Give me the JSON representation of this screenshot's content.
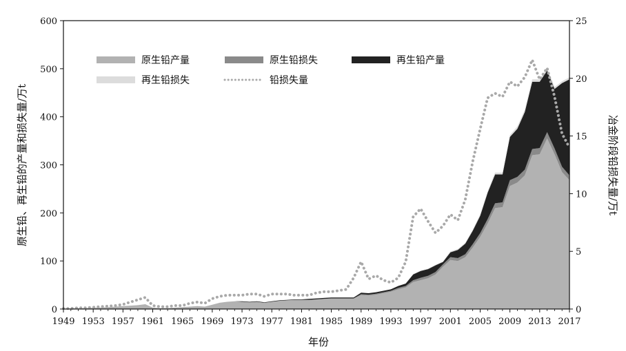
{
  "chart_data": {
    "type": "area",
    "xlabel": "年份",
    "ylabel_left": "原生铅、再生铅的产量和损失量/万t",
    "ylabel_right": "冶金阶段铅损失量/万t",
    "x_ticks": [
      "1949",
      "1953",
      "1957",
      "1961",
      "1965",
      "1969",
      "1973",
      "1977",
      "1981",
      "1985",
      "1989",
      "1993",
      "1997",
      "2001",
      "2005",
      "2009",
      "2013",
      "2017"
    ],
    "y_left_ticks": [
      "0",
      "100",
      "200",
      "300",
      "400",
      "500",
      "600"
    ],
    "y_right_ticks": [
      "0",
      "5",
      "10",
      "15",
      "20",
      "25"
    ],
    "ylim_left": [
      0,
      600
    ],
    "ylim_right": [
      0,
      25
    ],
    "xlim": [
      1949,
      2017
    ],
    "legend": {
      "placement": "top-left"
    },
    "colors": {
      "原生铅产量": "#b2b2b2",
      "原生铅损失": "#8a8a8a",
      "再生铅产量": "#222222",
      "再生铅损失": "#dcdcdc",
      "铅损失量": "#a9a9a9"
    },
    "years": [
      1949,
      1950,
      1951,
      1952,
      1953,
      1954,
      1955,
      1956,
      1957,
      1958,
      1959,
      1960,
      1961,
      1962,
      1963,
      1964,
      1965,
      1966,
      1967,
      1968,
      1969,
      1970,
      1971,
      1972,
      1973,
      1974,
      1975,
      1976,
      1977,
      1978,
      1979,
      1980,
      1981,
      1982,
      1983,
      1984,
      1985,
      1986,
      1987,
      1988,
      1989,
      1990,
      1991,
      1992,
      1993,
      1994,
      1995,
      1996,
      1997,
      1998,
      1999,
      2000,
      2001,
      2002,
      2003,
      2004,
      2005,
      2006,
      2007,
      2008,
      2009,
      2010,
      2011,
      2012,
      2013,
      2014,
      2015,
      2016,
      2017
    ],
    "series": [
      {
        "name": "原生铅产量",
        "axis": "left",
        "render": "stack",
        "values": [
          0.5,
          1,
          1.5,
          2,
          2.5,
          3,
          4,
          5,
          6,
          7,
          8,
          10,
          3,
          2,
          2,
          3,
          4,
          5,
          6,
          5,
          9,
          13,
          15,
          16,
          15,
          14,
          15,
          13,
          15,
          17,
          18,
          19,
          19,
          19,
          20,
          21,
          22,
          22,
          22,
          22,
          29,
          28,
          30,
          33,
          36,
          41,
          45,
          56,
          60,
          64,
          72,
          88,
          102,
          100,
          108,
          128,
          150,
          178,
          210,
          212,
          256,
          263,
          278,
          320,
          322,
          355,
          322,
          285,
          268
        ]
      },
      {
        "name": "原生铅损失",
        "axis": "left",
        "render": "stack",
        "values": [
          0,
          0,
          0,
          0,
          0,
          0,
          0,
          0,
          0,
          0,
          0,
          0,
          0,
          0,
          0,
          0,
          0,
          0,
          0,
          0,
          0,
          0,
          0,
          0,
          0,
          0,
          0,
          0,
          0,
          0,
          0,
          0,
          0,
          0,
          0,
          0,
          0,
          0,
          0,
          0,
          2,
          2,
          2,
          2,
          2,
          3,
          3,
          4,
          5,
          5,
          5,
          5,
          6,
          6,
          6,
          7,
          8,
          9,
          10,
          10,
          12,
          12,
          12,
          13,
          13,
          13,
          12,
          11,
          10
        ]
      },
      {
        "name": "再生铅产量",
        "axis": "left",
        "render": "stack",
        "values": [
          0,
          0,
          0,
          0,
          0,
          0,
          0,
          0,
          0,
          0,
          0,
          0,
          0,
          0,
          0,
          0,
          0,
          0,
          0,
          0,
          0,
          0,
          0,
          0,
          1,
          1,
          1,
          1,
          1,
          1,
          1,
          1,
          1,
          2,
          2,
          2,
          2,
          2,
          2,
          2,
          3,
          3,
          3,
          3,
          3,
          4,
          5,
          12,
          14,
          14,
          14,
          5,
          10,
          17,
          22,
          28,
          36,
          55,
          60,
          58,
          90,
          100,
          120,
          140,
          138,
          128,
          124,
          174,
          200
        ]
      },
      {
        "name": "再生铅损失",
        "axis": "left",
        "render": "stack",
        "values": [
          0,
          0,
          0,
          0,
          0,
          0,
          0,
          0,
          0,
          0,
          0,
          0,
          0,
          0,
          0,
          0,
          0,
          0,
          0,
          0,
          0,
          0,
          0,
          0,
          0,
          0,
          0,
          0,
          0,
          0,
          0,
          0,
          0,
          0,
          0,
          0,
          0,
          0,
          0,
          0,
          0,
          0,
          0,
          0,
          0,
          0,
          0,
          1,
          1,
          1,
          1,
          1,
          2,
          2,
          2,
          2,
          3,
          3,
          4,
          4,
          4,
          5,
          5,
          5,
          5,
          5,
          4,
          4,
          4
        ]
      },
      {
        "name": "铅损失量",
        "axis": "right",
        "render": "line",
        "values": [
          0.05,
          0.05,
          0.1,
          0.1,
          0.15,
          0.2,
          0.25,
          0.3,
          0.4,
          0.6,
          0.8,
          1.0,
          0.3,
          0.2,
          0.2,
          0.3,
          0.3,
          0.5,
          0.6,
          0.5,
          0.9,
          1.1,
          1.2,
          1.2,
          1.2,
          1.3,
          1.3,
          1.1,
          1.3,
          1.3,
          1.3,
          1.2,
          1.2,
          1.2,
          1.4,
          1.5,
          1.5,
          1.6,
          1.7,
          2.7,
          4.1,
          2.6,
          2.9,
          2.5,
          2.3,
          2.7,
          4.1,
          8.0,
          8.7,
          7.6,
          6.6,
          7.2,
          8.2,
          7.7,
          9.5,
          12.8,
          15.6,
          18.3,
          18.7,
          18.4,
          19.7,
          19.3,
          20.1,
          21.6,
          19.9,
          20.9,
          18.4,
          15.2,
          14.0
        ]
      }
    ]
  }
}
